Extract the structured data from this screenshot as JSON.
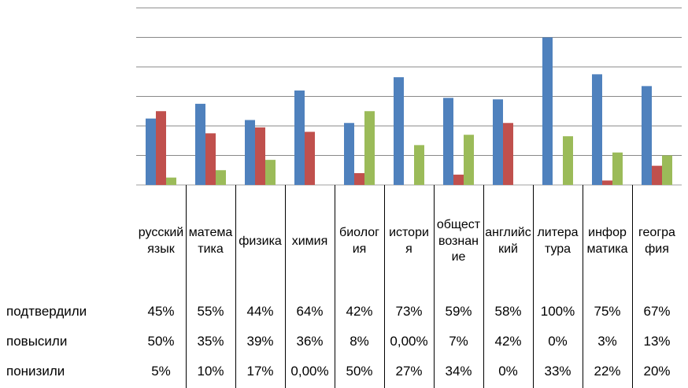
{
  "chart_data": {
    "type": "bar",
    "categories": [
      "русский язык",
      "математика",
      "физика",
      "химия",
      "биология",
      "история",
      "обществознание",
      "английский",
      "литература",
      "информатика",
      "география"
    ],
    "series": [
      {
        "name": "подтвердили",
        "color": "#4f81bd",
        "values": [
          45,
          55,
          44,
          64,
          42,
          73,
          59,
          58,
          100,
          75,
          67
        ],
        "value_labels": [
          "45%",
          "55%",
          "44%",
          "64%",
          "42%",
          "73%",
          "59%",
          "58%",
          "100%",
          "75%",
          "67%"
        ]
      },
      {
        "name": "повысили",
        "color": "#c0504d",
        "values": [
          50,
          35,
          39,
          36,
          8,
          0,
          7,
          42,
          0,
          3,
          13
        ],
        "value_labels": [
          "50%",
          "35%",
          "39%",
          "36%",
          "8%",
          "0,00%",
          "7%",
          "42%",
          "0%",
          "3%",
          "13%"
        ]
      },
      {
        "name": "понизили",
        "color": "#9bbb59",
        "values": [
          5,
          10,
          17,
          0,
          50,
          27,
          34,
          0,
          33,
          22,
          20
        ],
        "value_labels": [
          "5%",
          "10%",
          "17%",
          "0,00%",
          "50%",
          "27%",
          "34%",
          "0%",
          "33%",
          "22%",
          "20%"
        ]
      }
    ],
    "ylim": [
      0,
      120
    ],
    "yticks": [
      0,
      20,
      40,
      60,
      80,
      100,
      120
    ],
    "grid": true
  }
}
